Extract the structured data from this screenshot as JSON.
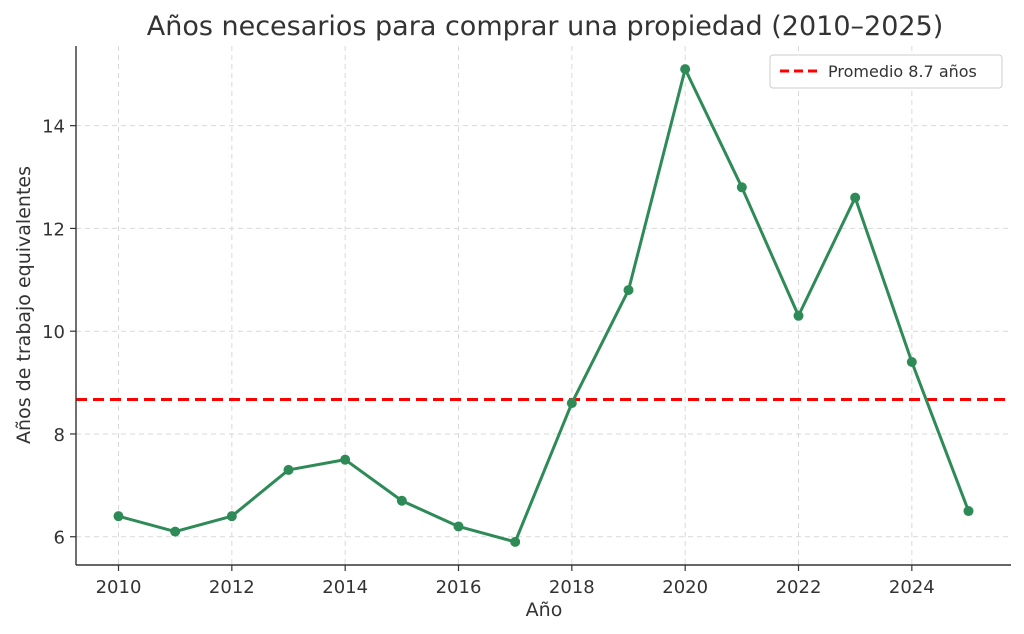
{
  "chart_data": {
    "type": "line",
    "title": "Años necesarios para comprar una propiedad (2010–2025)",
    "xlabel": "Año",
    "ylabel": "Años de trabajo equivalentes",
    "x": [
      2010,
      2011,
      2012,
      2013,
      2014,
      2015,
      2016,
      2017,
      2018,
      2019,
      2020,
      2021,
      2022,
      2023,
      2024,
      2025
    ],
    "series": [
      {
        "values": [
          6.4,
          6.1,
          6.4,
          7.3,
          7.5,
          6.7,
          6.2,
          5.9,
          8.6,
          10.8,
          15.1,
          12.8,
          10.3,
          12.6,
          9.4,
          6.5
        ],
        "color": "#2e8b57"
      }
    ],
    "reference_line": {
      "label": "Promedio 8.7 años",
      "value": 8.67,
      "color": "#ff0000",
      "style": "dashed"
    },
    "xlim": [
      2009.25,
      2025.75
    ],
    "ylim": [
      5.45,
      15.55
    ],
    "xticks": [
      2010,
      2012,
      2014,
      2016,
      2018,
      2020,
      2022,
      2024
    ],
    "yticks": [
      6,
      8,
      10,
      12,
      14
    ],
    "grid": true,
    "legend_position": "top-right"
  }
}
